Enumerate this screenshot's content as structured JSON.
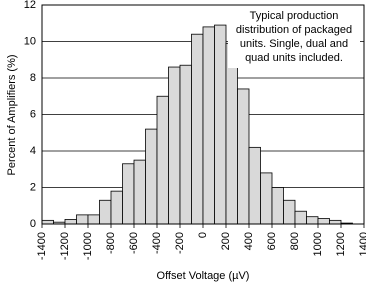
{
  "chart_data": {
    "type": "histogram",
    "x_label": "Offset Voltage (µV)",
    "y_label": "Percent of Amplifiers (%)",
    "annotation": [
      "Typical production",
      "distribution of packaged",
      "units. Single, dual and",
      "quad units included."
    ],
    "bins": [
      -1400,
      -1300,
      -1200,
      -1100,
      -1000,
      -900,
      -800,
      -700,
      -600,
      -500,
      -400,
      -300,
      -200,
      -100,
      0,
      100,
      200,
      300,
      400,
      500,
      600,
      700,
      800,
      900,
      1000,
      1100,
      1200,
      1300,
      1400
    ],
    "values": [
      0.2,
      0.1,
      0.25,
      0.5,
      0.5,
      1.3,
      1.8,
      3.3,
      3.5,
      5.2,
      7.0,
      8.6,
      8.7,
      10.4,
      10.8,
      10.9,
      9.9,
      7.4,
      4.2,
      2.8,
      2.0,
      1.3,
      0.7,
      0.4,
      0.3,
      0.2,
      0.05,
      0
    ],
    "color": "#d9d9d9",
    "xlim": [
      -1400,
      1400
    ],
    "xticks": [
      -1400,
      -1200,
      -1000,
      -800,
      -600,
      -400,
      -200,
      0,
      200,
      400,
      600,
      800,
      1000,
      1200,
      1400
    ],
    "ylim": [
      0,
      12
    ],
    "yticks": [
      0,
      2,
      4,
      6,
      8,
      10,
      12
    ],
    "grid": true
  }
}
